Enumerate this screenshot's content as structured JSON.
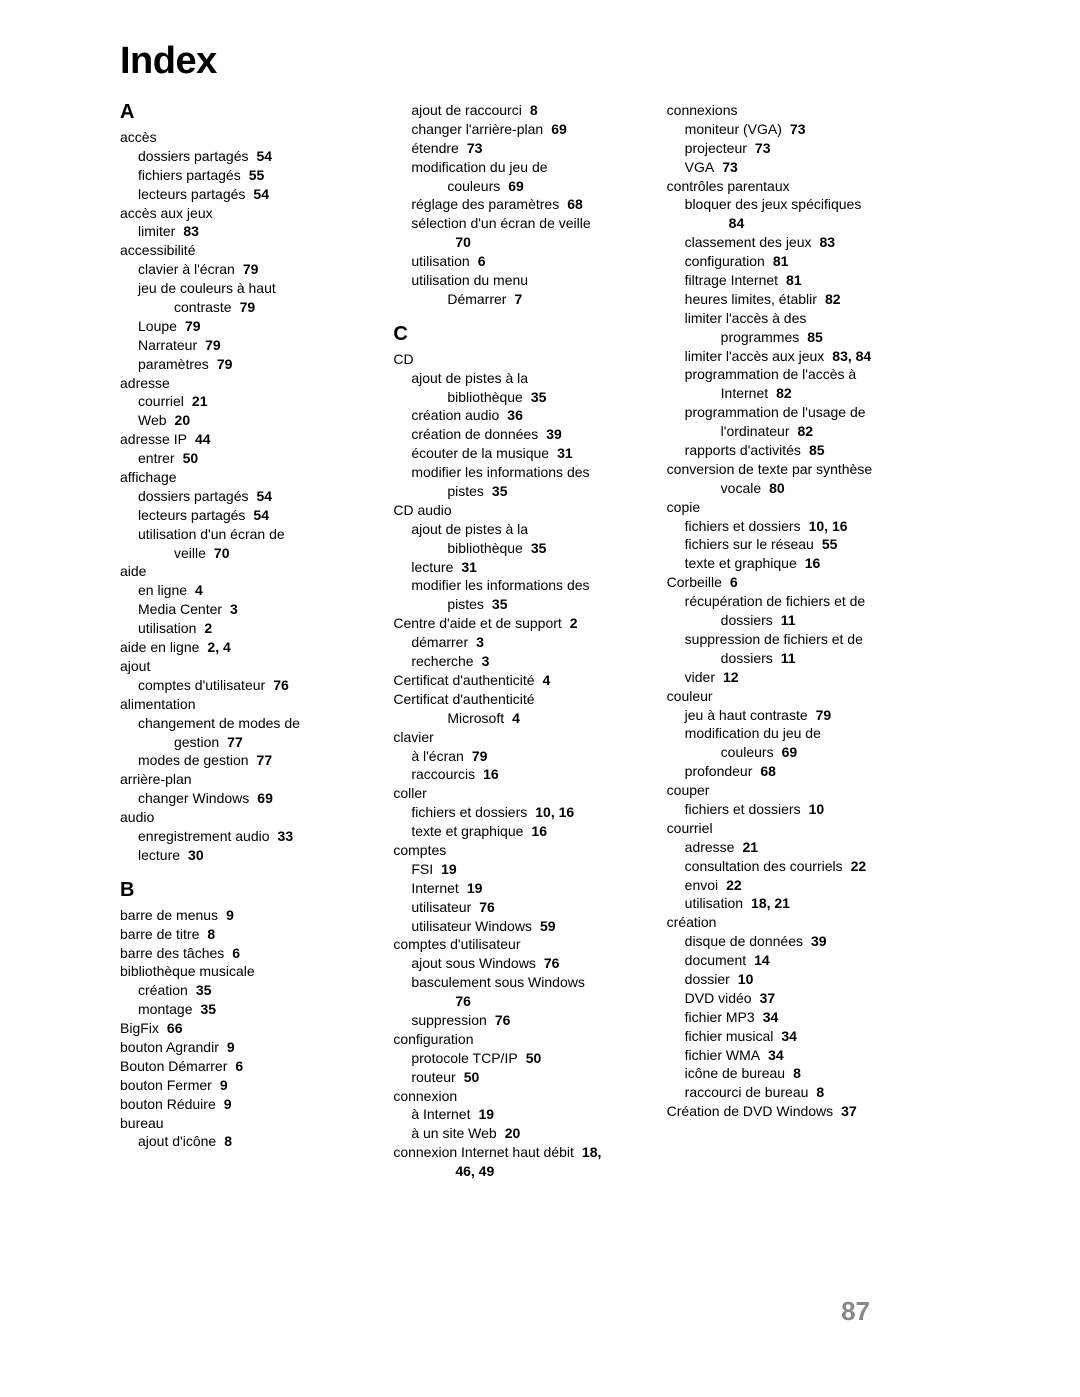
{
  "title": "Index",
  "pageNumber": "87",
  "columns": [
    [
      {
        "t": "letter",
        "text": "A",
        "first": true
      },
      {
        "l": 0,
        "text": "accès"
      },
      {
        "l": 1,
        "text": "dossiers partagés",
        "p": "54"
      },
      {
        "l": 1,
        "text": "fichiers partagés",
        "p": "55"
      },
      {
        "l": 1,
        "text": "lecteurs partagés",
        "p": "54"
      },
      {
        "l": 0,
        "text": "accès aux jeux"
      },
      {
        "l": 1,
        "text": "limiter",
        "p": "83"
      },
      {
        "l": 0,
        "text": "accessibilité"
      },
      {
        "l": 1,
        "text": "clavier à l'écran",
        "p": "79"
      },
      {
        "l": 1,
        "text": "jeu de couleurs à haut"
      },
      {
        "l": 2,
        "text": "contraste",
        "p": "79"
      },
      {
        "l": 1,
        "text": "Loupe",
        "p": "79"
      },
      {
        "l": 1,
        "text": "Narrateur",
        "p": "79"
      },
      {
        "l": 1,
        "text": "paramètres",
        "p": "79"
      },
      {
        "l": 0,
        "text": "adresse"
      },
      {
        "l": 1,
        "text": "courriel",
        "p": "21"
      },
      {
        "l": 1,
        "text": "Web",
        "p": "20"
      },
      {
        "l": 0,
        "text": "adresse IP",
        "p": "44"
      },
      {
        "l": 1,
        "text": "entrer",
        "p": "50"
      },
      {
        "l": 0,
        "text": "affichage"
      },
      {
        "l": 1,
        "text": "dossiers partagés",
        "p": "54"
      },
      {
        "l": 1,
        "text": "lecteurs partagés",
        "p": "54"
      },
      {
        "l": 1,
        "text": "utilisation d'un écran de"
      },
      {
        "l": 2,
        "text": "veille",
        "p": "70"
      },
      {
        "l": 0,
        "text": "aide"
      },
      {
        "l": 1,
        "text": "en ligne",
        "p": "4"
      },
      {
        "l": 1,
        "text": "Media Center",
        "p": "3"
      },
      {
        "l": 1,
        "text": "utilisation",
        "p": "2"
      },
      {
        "l": 0,
        "text": "aide en ligne",
        "p": "2, 4"
      },
      {
        "l": 0,
        "text": "ajout"
      },
      {
        "l": 1,
        "text": "comptes d'utilisateur",
        "p": "76"
      },
      {
        "l": 0,
        "text": "alimentation"
      },
      {
        "l": 1,
        "text": "changement de modes de"
      },
      {
        "l": 2,
        "text": "gestion",
        "p": "77"
      },
      {
        "l": 1,
        "text": "modes de gestion",
        "p": "77"
      },
      {
        "l": 0,
        "text": "arrière-plan"
      },
      {
        "l": 1,
        "text": "changer Windows",
        "p": "69"
      },
      {
        "l": 0,
        "text": "audio"
      },
      {
        "l": 1,
        "text": "enregistrement audio",
        "p": "33"
      },
      {
        "l": 1,
        "text": "lecture",
        "p": "30"
      },
      {
        "t": "letter",
        "text": "B"
      },
      {
        "l": 0,
        "text": "barre de menus",
        "p": "9"
      },
      {
        "l": 0,
        "text": "barre de titre",
        "p": "8"
      },
      {
        "l": 0,
        "text": "barre des tâches",
        "p": "6"
      },
      {
        "l": 0,
        "text": "bibliothèque musicale"
      },
      {
        "l": 1,
        "text": "création",
        "p": "35"
      },
      {
        "l": 1,
        "text": "montage",
        "p": "35"
      },
      {
        "l": 0,
        "text": "BigFix",
        "p": "66"
      },
      {
        "l": 0,
        "text": "bouton Agrandir",
        "p": "9"
      },
      {
        "l": 0,
        "text": "Bouton Démarrer",
        "p": "6"
      },
      {
        "l": 0,
        "text": "bouton Fermer",
        "p": "9"
      },
      {
        "l": 0,
        "text": "bouton Réduire",
        "p": "9"
      },
      {
        "l": 0,
        "text": "bureau"
      },
      {
        "l": 1,
        "text": "ajout d'icône",
        "p": "8"
      }
    ],
    [
      {
        "l": 1,
        "text": "ajout de raccourci",
        "p": "8"
      },
      {
        "l": 1,
        "text": "changer l'arrière-plan",
        "p": "69"
      },
      {
        "l": 1,
        "text": "étendre",
        "p": "73"
      },
      {
        "l": 1,
        "text": "modification du jeu de"
      },
      {
        "l": 2,
        "text": "couleurs",
        "p": "69"
      },
      {
        "l": 1,
        "text": "réglage des paramètres",
        "p": "68"
      },
      {
        "l": 1,
        "text": "sélection d'un écran de veille"
      },
      {
        "l": 2,
        "text": "",
        "p": "70",
        "ponly": true
      },
      {
        "l": 1,
        "text": "utilisation",
        "p": "6"
      },
      {
        "l": 1,
        "text": "utilisation du menu"
      },
      {
        "l": 2,
        "text": "Démarrer",
        "p": "7"
      },
      {
        "t": "letter",
        "text": "C"
      },
      {
        "l": 0,
        "text": "CD"
      },
      {
        "l": 1,
        "text": "ajout de pistes à la"
      },
      {
        "l": 2,
        "text": "bibliothèque",
        "p": "35"
      },
      {
        "l": 1,
        "text": "création audio",
        "p": "36"
      },
      {
        "l": 1,
        "text": "création de données",
        "p": "39"
      },
      {
        "l": 1,
        "text": "écouter de la musique",
        "p": "31"
      },
      {
        "l": 1,
        "text": "modifier les informations des"
      },
      {
        "l": 2,
        "text": "pistes",
        "p": "35"
      },
      {
        "l": 0,
        "text": "CD audio"
      },
      {
        "l": 1,
        "text": "ajout de pistes à la"
      },
      {
        "l": 2,
        "text": "bibliothèque",
        "p": "35"
      },
      {
        "l": 1,
        "text": "lecture",
        "p": "31"
      },
      {
        "l": 1,
        "text": "modifier les informations des"
      },
      {
        "l": 2,
        "text": "pistes",
        "p": "35"
      },
      {
        "l": 0,
        "text": "Centre d'aide et de support",
        "p": "2"
      },
      {
        "l": 1,
        "text": "démarrer",
        "p": "3"
      },
      {
        "l": 1,
        "text": "recherche",
        "p": "3"
      },
      {
        "l": 0,
        "text": "Certificat d'authenticité",
        "p": "4"
      },
      {
        "l": 0,
        "text": "Certificat d'authenticité"
      },
      {
        "l": 2,
        "text": "Microsoft",
        "p": "4"
      },
      {
        "l": 0,
        "text": "clavier"
      },
      {
        "l": 1,
        "text": "à l'écran",
        "p": "79"
      },
      {
        "l": 1,
        "text": "raccourcis",
        "p": "16"
      },
      {
        "l": 0,
        "text": "coller"
      },
      {
        "l": 1,
        "text": "fichiers et dossiers",
        "p": "10, 16"
      },
      {
        "l": 1,
        "text": "texte et graphique",
        "p": "16"
      },
      {
        "l": 0,
        "text": "comptes"
      },
      {
        "l": 1,
        "text": "FSI",
        "p": "19"
      },
      {
        "l": 1,
        "text": "Internet",
        "p": "19"
      },
      {
        "l": 1,
        "text": "utilisateur",
        "p": "76"
      },
      {
        "l": 1,
        "text": "utilisateur Windows",
        "p": "59"
      },
      {
        "l": 0,
        "text": "comptes d'utilisateur"
      },
      {
        "l": 1,
        "text": "ajout sous Windows",
        "p": "76"
      },
      {
        "l": 1,
        "text": "basculement sous Windows"
      },
      {
        "l": 2,
        "text": "",
        "p": "76",
        "ponly": true
      },
      {
        "l": 1,
        "text": "suppression",
        "p": "76"
      },
      {
        "l": 0,
        "text": "configuration"
      },
      {
        "l": 1,
        "text": "protocole TCP/IP",
        "p": "50"
      },
      {
        "l": 1,
        "text": "routeur",
        "p": "50"
      },
      {
        "l": 0,
        "text": "connexion"
      },
      {
        "l": 1,
        "text": "à Internet",
        "p": "19"
      },
      {
        "l": 1,
        "text": "à un site Web",
        "p": "20"
      },
      {
        "l": 0,
        "text": "connexion Internet haut débit",
        "p": "18,"
      },
      {
        "l": 2,
        "text": "",
        "p": "46, 49",
        "ponly": true
      }
    ],
    [
      {
        "l": 0,
        "text": "connexions"
      },
      {
        "l": 1,
        "text": "moniteur (VGA)",
        "p": "73"
      },
      {
        "l": 1,
        "text": "projecteur",
        "p": "73"
      },
      {
        "l": 1,
        "text": "VGA",
        "p": "73"
      },
      {
        "l": 0,
        "text": "contrôles parentaux"
      },
      {
        "l": 1,
        "text": "bloquer des jeux spécifiques"
      },
      {
        "l": 2,
        "text": "",
        "p": "84",
        "ponly": true
      },
      {
        "l": 1,
        "text": "classement des jeux",
        "p": "83"
      },
      {
        "l": 1,
        "text": "configuration",
        "p": "81"
      },
      {
        "l": 1,
        "text": "filtrage Internet",
        "p": "81"
      },
      {
        "l": 1,
        "text": "heures limites, établir",
        "p": "82"
      },
      {
        "l": 1,
        "text": "limiter l'accès à des"
      },
      {
        "l": 2,
        "text": "programmes",
        "p": "85"
      },
      {
        "l": 1,
        "text": "limiter l'accès aux jeux",
        "p": "83, 84"
      },
      {
        "l": 1,
        "text": "programmation de l'accès à"
      },
      {
        "l": 2,
        "text": "Internet",
        "p": "82"
      },
      {
        "l": 1,
        "text": "programmation de l'usage de"
      },
      {
        "l": 2,
        "text": "l'ordinateur",
        "p": "82"
      },
      {
        "l": 1,
        "text": "rapports d'activités",
        "p": "85"
      },
      {
        "l": 0,
        "text": "conversion de texte par synthèse"
      },
      {
        "l": 2,
        "text": "vocale",
        "p": "80"
      },
      {
        "l": 0,
        "text": "copie"
      },
      {
        "l": 1,
        "text": "fichiers et dossiers",
        "p": "10, 16"
      },
      {
        "l": 1,
        "text": "fichiers sur le réseau",
        "p": "55"
      },
      {
        "l": 1,
        "text": "texte et graphique",
        "p": "16"
      },
      {
        "l": 0,
        "text": "Corbeille",
        "p": "6"
      },
      {
        "l": 1,
        "text": "récupération de fichiers et de"
      },
      {
        "l": 2,
        "text": "dossiers",
        "p": "11"
      },
      {
        "l": 1,
        "text": "suppression de fichiers et de"
      },
      {
        "l": 2,
        "text": "dossiers",
        "p": "11"
      },
      {
        "l": 1,
        "text": "vider",
        "p": "12"
      },
      {
        "l": 0,
        "text": "couleur"
      },
      {
        "l": 1,
        "text": "jeu à haut contraste",
        "p": "79"
      },
      {
        "l": 1,
        "text": "modification du jeu de"
      },
      {
        "l": 2,
        "text": "couleurs",
        "p": "69"
      },
      {
        "l": 1,
        "text": "profondeur",
        "p": "68"
      },
      {
        "l": 0,
        "text": "couper"
      },
      {
        "l": 1,
        "text": "fichiers et dossiers",
        "p": "10"
      },
      {
        "l": 0,
        "text": "courriel"
      },
      {
        "l": 1,
        "text": "adresse",
        "p": "21"
      },
      {
        "l": 1,
        "text": "consultation des courriels",
        "p": "22"
      },
      {
        "l": 1,
        "text": "envoi",
        "p": "22"
      },
      {
        "l": 1,
        "text": "utilisation",
        "p": "18, 21"
      },
      {
        "l": 0,
        "text": "création"
      },
      {
        "l": 1,
        "text": "disque de données",
        "p": "39"
      },
      {
        "l": 1,
        "text": "document",
        "p": "14"
      },
      {
        "l": 1,
        "text": "dossier",
        "p": "10"
      },
      {
        "l": 1,
        "text": "DVD vidéo",
        "p": "37"
      },
      {
        "l": 1,
        "text": "fichier MP3",
        "p": "34"
      },
      {
        "l": 1,
        "text": "fichier musical",
        "p": "34"
      },
      {
        "l": 1,
        "text": "fichier WMA",
        "p": "34"
      },
      {
        "l": 1,
        "text": "icône de bureau",
        "p": "8"
      },
      {
        "l": 1,
        "text": "raccourci de bureau",
        "p": "8"
      },
      {
        "l": 0,
        "text": "Création de DVD Windows",
        "p": "37"
      }
    ]
  ]
}
